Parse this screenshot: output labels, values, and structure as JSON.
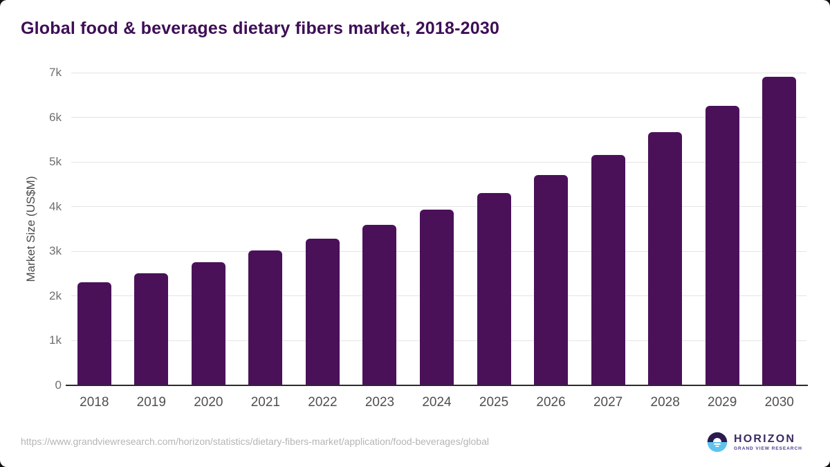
{
  "chart_data": {
    "type": "bar",
    "title": "Global food & beverages dietary fibers market, 2018-2030",
    "xlabel": "",
    "ylabel": "Market Size (US$M)",
    "categories": [
      "2018",
      "2019",
      "2020",
      "2021",
      "2022",
      "2023",
      "2024",
      "2025",
      "2026",
      "2027",
      "2028",
      "2029",
      "2030"
    ],
    "values": [
      2310,
      2510,
      2760,
      3020,
      3280,
      3590,
      3930,
      4300,
      4710,
      5150,
      5670,
      6250,
      6910
    ],
    "yticks": [
      "0",
      "1k",
      "2k",
      "3k",
      "4k",
      "5k",
      "6k",
      "7k"
    ],
    "ylim": [
      0,
      7000
    ],
    "grid": true,
    "legend": false,
    "bar_color": "#4a1159"
  },
  "footer": {
    "source_url": "https://www.grandviewresearch.com/horizon/statistics/dietary-fibers-market/application/food-beverages/global",
    "logo": {
      "name": "HORIZON",
      "subtitle": "GRAND VIEW RESEARCH",
      "icon_top_color": "#2b1b4e",
      "icon_bottom_color": "#5ec3ef"
    }
  },
  "colors": {
    "title": "#3e0e56",
    "axis_label": "#4a4a4a",
    "ytick": "#6e6e6e",
    "xtick": "#4f4f4f",
    "grid": "#e4e4e4",
    "axis_line": "#2b2b2b",
    "url": "#b5b5b5",
    "logo_text": "#3b2a63",
    "logo_subtext": "#4b3c8f"
  }
}
